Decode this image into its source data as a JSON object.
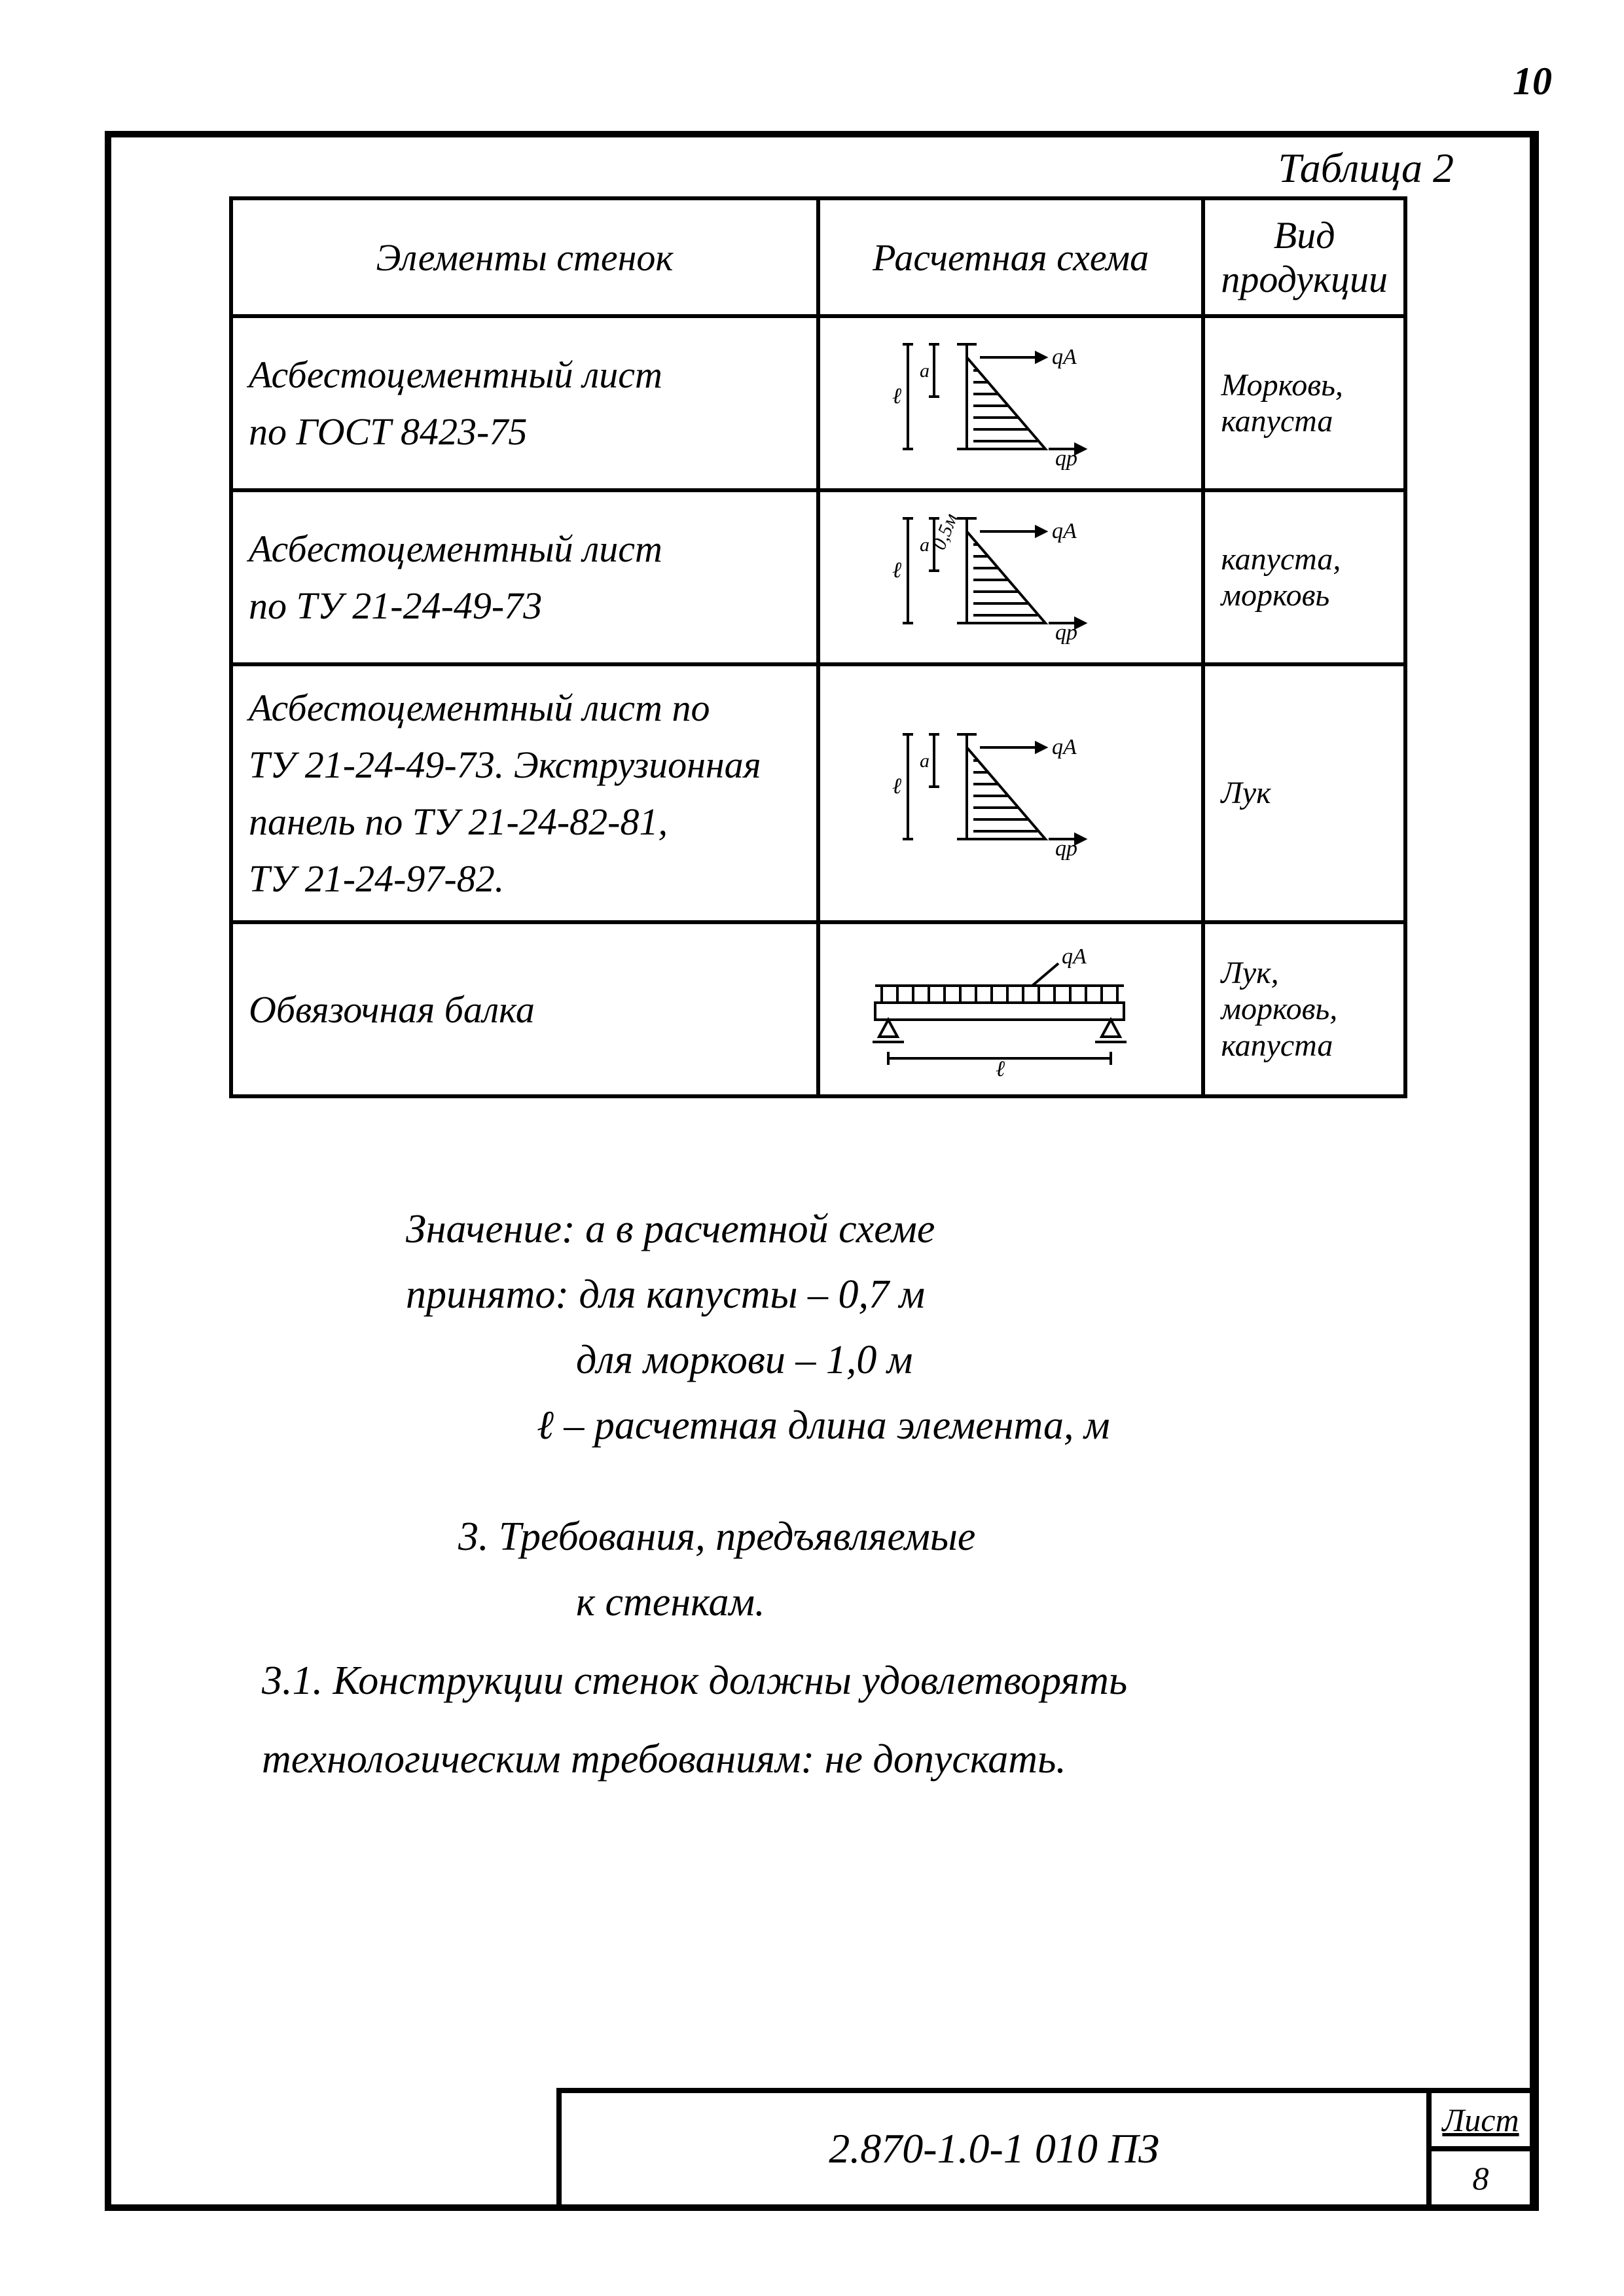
{
  "page_number_top": "10",
  "table": {
    "caption": "Таблица 2",
    "headers": {
      "elements": "Элементы стенок",
      "scheme": "Расчетная схема",
      "product": "Вид продукции"
    },
    "rows": [
      {
        "element": "Асбестоцементный лист\nпо ГОСТ 8423-75",
        "scheme_type": "triangle",
        "scheme_labels": {
          "qA": "qА",
          "qP": "qр",
          "l": "ℓ",
          "a": "a"
        },
        "product": "Морковь,\nкапуста"
      },
      {
        "element": "Асбестоцементный лист\nпо ТУ 21-24-49-73",
        "scheme_type": "triangle",
        "scheme_labels": {
          "qA": "qА",
          "qP": "qр",
          "l": "ℓ",
          "a": "a",
          "dim": "0,5м"
        },
        "product": "капуста,\nморковь"
      },
      {
        "element": "Асбестоцементный лист по\nТУ 21-24-49-73. Экструзионная\nпанель по ТУ 21-24-82-81,\nТУ 21-24-97-82.",
        "scheme_type": "triangle",
        "scheme_labels": {
          "qA": "qА",
          "qP": "qр",
          "l": "ℓ",
          "a": "a"
        },
        "product": "Лук"
      },
      {
        "element": "Обвязочная балка",
        "scheme_type": "beam",
        "scheme_labels": {
          "qA": "qА",
          "l": "ℓ"
        },
        "product": "Лук,\nморковь,\nкапуста"
      }
    ]
  },
  "notes": {
    "line1": "Значение: a в расчетной схеме",
    "line2": "принято: для капусты – 0,7 м",
    "line3": "для моркови – 1,0 м",
    "line4": "ℓ – расчетная длина элемента, м"
  },
  "section": {
    "heading": "3. Требования, предъявляемые",
    "heading2": "к стенкам.",
    "para": "3.1. Конструкции стенок должны удовлетворять",
    "para2": "технологическим требованиям: не допускать."
  },
  "title_block": {
    "doc": "2.870-1.0-1 010 ПЗ",
    "side_top": "Лист",
    "side_bottom": "8"
  },
  "style": {
    "stroke": "#000000",
    "stroke_width": 4,
    "hatch_spacing": 10
  }
}
